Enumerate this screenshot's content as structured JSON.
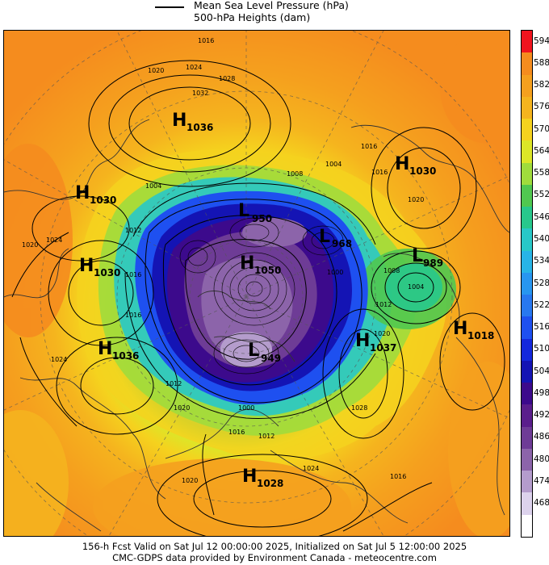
{
  "header": {
    "line1": "Mean Sea Level Pressure (hPa)",
    "line2": "500-hPa Heights (dam)"
  },
  "colorbar": {
    "segments": [
      {
        "label": "594",
        "color": "#f0141e"
      },
      {
        "label": "588",
        "color": "#f58c1e"
      },
      {
        "label": "582",
        "color": "#f5a01e"
      },
      {
        "label": "576",
        "color": "#f5b41e"
      },
      {
        "label": "570",
        "color": "#f5d21e"
      },
      {
        "label": "564",
        "color": "#dce628"
      },
      {
        "label": "558",
        "color": "#a0dc3c"
      },
      {
        "label": "552",
        "color": "#50c850"
      },
      {
        "label": "546",
        "color": "#28c88c"
      },
      {
        "label": "540",
        "color": "#28c8c8"
      },
      {
        "label": "534",
        "color": "#28b4e6"
      },
      {
        "label": "528",
        "color": "#2896f0"
      },
      {
        "label": "522",
        "color": "#2878f0"
      },
      {
        "label": "516",
        "color": "#1e50f0"
      },
      {
        "label": "510",
        "color": "#1428dc"
      },
      {
        "label": "504",
        "color": "#1414b4"
      },
      {
        "label": "498",
        "color": "#3c0a8c"
      },
      {
        "label": "492",
        "color": "#5a1e8c"
      },
      {
        "label": "486",
        "color": "#6e3c96"
      },
      {
        "label": "480",
        "color": "#8c64aa"
      },
      {
        "label": "474",
        "color": "#b49ccc"
      },
      {
        "label": "468",
        "color": "#dcd2ec"
      },
      {
        "label": "",
        "color": "#ffffff"
      }
    ]
  },
  "pressure_centers": [
    {
      "type": "H",
      "value": "1036"
    },
    {
      "type": "H",
      "value": "1030"
    },
    {
      "type": "H",
      "value": "1030"
    },
    {
      "type": "H",
      "value": "1030"
    },
    {
      "type": "H",
      "value": "1036"
    },
    {
      "type": "H",
      "value": "1037"
    },
    {
      "type": "H",
      "value": "1018"
    },
    {
      "type": "H",
      "value": "1028"
    },
    {
      "type": "H",
      "value": "1050"
    },
    {
      "type": "L",
      "value": "950"
    },
    {
      "type": "L",
      "value": "968"
    },
    {
      "type": "L",
      "value": "989"
    },
    {
      "type": "L",
      "value": "949"
    }
  ],
  "isobar_labels": [
    "1016",
    "1020",
    "1024",
    "1028",
    "1032",
    "1016",
    "1004",
    "1008",
    "1016",
    "1020",
    "1020",
    "1024",
    "1012",
    "1016",
    "1004",
    "1008",
    "1000",
    "1012",
    "1020",
    "1004",
    "1028",
    "1016",
    "1020",
    "1024",
    "1016",
    "1012",
    "1000",
    "1020",
    "1024",
    "1016",
    "1012"
  ],
  "footer": {
    "line1": "156-h Fcst Valid on Sat Jul 12 00:00:00 2025, Initialized on Sat Jul  5 12:00:00 2025",
    "line2": "CMC-GDPS data provided by Environment Canada - meteocentre.com"
  }
}
